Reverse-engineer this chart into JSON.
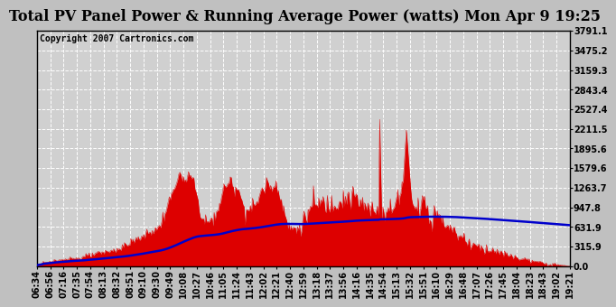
{
  "title": "Total PV Panel Power & Running Average Power (watts) Mon Apr 9 19:25",
  "copyright": "Copyright 2007 Cartronics.com",
  "yticks": [
    0.0,
    315.9,
    631.9,
    947.8,
    1263.7,
    1579.6,
    1895.6,
    2211.5,
    2527.4,
    2843.4,
    3159.3,
    3475.2,
    3791.1
  ],
  "xtick_labels": [
    "06:34",
    "06:56",
    "07:16",
    "07:35",
    "07:54",
    "08:13",
    "08:32",
    "08:51",
    "09:10",
    "09:30",
    "09:49",
    "10:08",
    "10:27",
    "10:46",
    "11:05",
    "11:24",
    "11:43",
    "12:02",
    "12:21",
    "12:40",
    "12:59",
    "13:18",
    "13:37",
    "13:56",
    "14:16",
    "14:35",
    "14:54",
    "15:13",
    "15:32",
    "15:51",
    "16:10",
    "16:29",
    "16:48",
    "17:07",
    "17:26",
    "17:45",
    "18:04",
    "18:23",
    "18:43",
    "19:02",
    "19:21"
  ],
  "ymin": 0.0,
  "ymax": 3791.1,
  "outer_bg_color": "#c0c0c0",
  "title_bg_color": "#c0c0c0",
  "plot_bg_color": "#d0d0d0",
  "fill_color": "#dd0000",
  "line_color": "#0000cc",
  "grid_color": "#ffffff",
  "title_color": "#000000",
  "title_fontsize": 11.5,
  "copyright_fontsize": 7,
  "tick_fontsize": 7,
  "border_color": "#000000"
}
